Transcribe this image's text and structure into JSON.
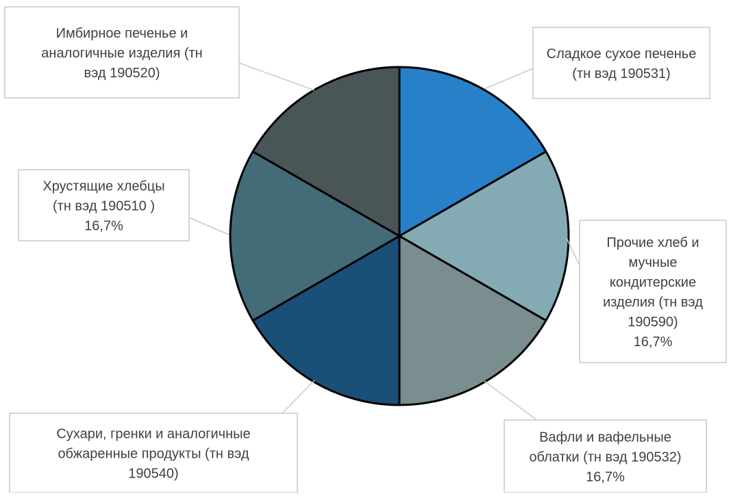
{
  "chart_data": {
    "type": "pie",
    "title": "",
    "slices": [
      {
        "label_lines": [
          "Сладкое сухое печенье",
          "(тн вэд 190531)"
        ],
        "value": 16.7,
        "percent_label": "",
        "color": "#2780C8"
      },
      {
        "label_lines": [
          "Прочие хлеб и",
          "мучные",
          "кондитерские",
          "изделия (тн вэд",
          "190590)"
        ],
        "value": 16.7,
        "percent_label": "16,7%",
        "color": "#84ABB4"
      },
      {
        "label_lines": [
          "Вафли и вафельные",
          "облатки (тн вэд 190532)"
        ],
        "value": 16.7,
        "percent_label": "16,7%",
        "color": "#7A8D8F"
      },
      {
        "label_lines": [
          "Сухари, гренки и аналогичные",
          "обжаренные продукты (тн вэд",
          "190540)"
        ],
        "value": 16.7,
        "percent_label": "",
        "color": "#1A4F78"
      },
      {
        "label_lines": [
          "Хрустящие хлебцы",
          "(тн вэд 190510 )"
        ],
        "value": 16.7,
        "percent_label": "16,7%",
        "color": "#446C78"
      },
      {
        "label_lines": [
          "Имбирное печенье и",
          "аналогичные изделия (тн",
          "вэд 190520)"
        ],
        "value": 16.7,
        "percent_label": "",
        "color": "#4A5558"
      }
    ],
    "legend": "none",
    "label_style": "callout-boxes"
  }
}
